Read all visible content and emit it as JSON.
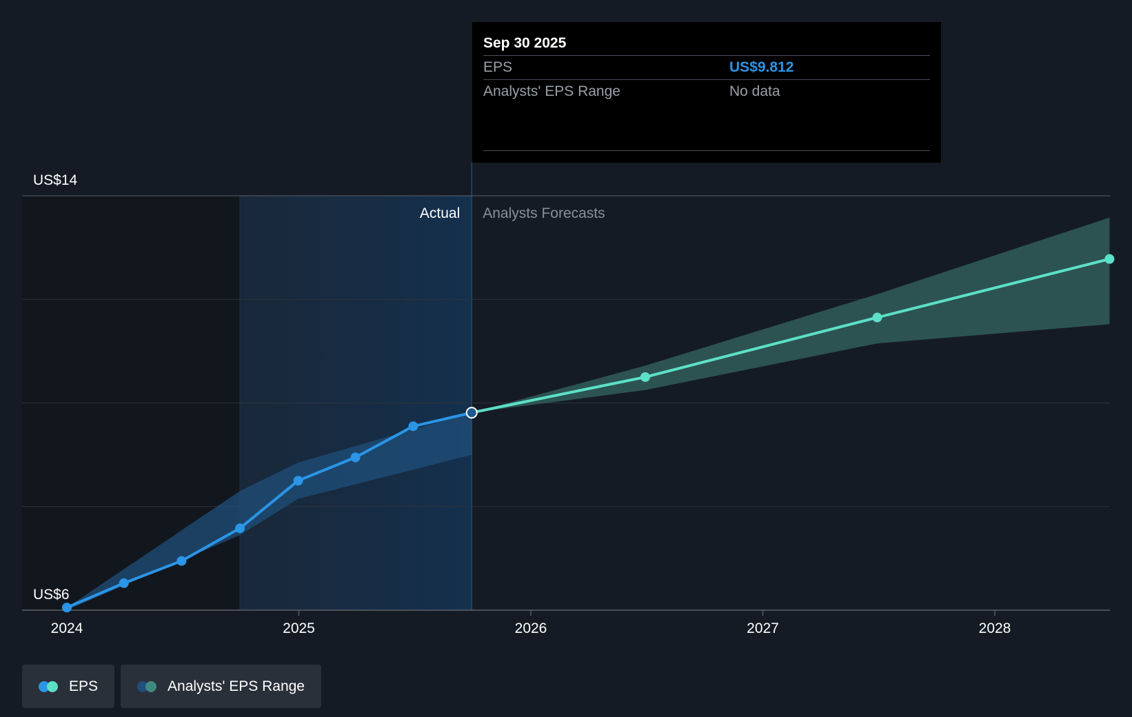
{
  "tooltip": {
    "date": "Sep 30 2025",
    "rows": [
      {
        "label": "EPS",
        "value": "US$9.812"
      },
      {
        "label": "Analysts' EPS Range",
        "value": "No data"
      }
    ]
  },
  "legend": {
    "eps": "EPS",
    "range": "Analysts' EPS Range"
  },
  "colors": {
    "background": "#151b24",
    "actual_line": "#2b95e6",
    "forecast_line": "#5de0c8",
    "forecast_band": "#2f5a58",
    "actual_band": "#1f4f7a"
  },
  "chart_data": {
    "type": "line",
    "y_tick_labels": [
      "US$14",
      "US$6"
    ],
    "ylim": [
      6,
      14
    ],
    "x_ticks": [
      2024,
      2025,
      2026,
      2027,
      2028
    ],
    "section_labels": {
      "actual": "Actual",
      "forecast": "Analysts Forecasts"
    },
    "series": [
      {
        "name": "EPS",
        "kind": "actual",
        "points": [
          {
            "x": "2024-01-01",
            "y": 6.05
          },
          {
            "x": "2024-03-31",
            "y": 6.52
          },
          {
            "x": "2024-06-30",
            "y": 6.95
          },
          {
            "x": "2024-09-30",
            "y": 7.58
          },
          {
            "x": "2024-12-31",
            "y": 8.5
          },
          {
            "x": "2025-03-31",
            "y": 8.95
          },
          {
            "x": "2025-06-30",
            "y": 9.55
          },
          {
            "x": "2025-09-30",
            "y": 9.812
          }
        ]
      },
      {
        "name": "EPS",
        "kind": "forecast",
        "points": [
          {
            "x": "2025-09-30",
            "y": 9.812
          },
          {
            "x": "2026-06-30",
            "y": 10.5
          },
          {
            "x": "2027-06-30",
            "y": 11.65
          },
          {
            "x": "2028-06-30",
            "y": 12.78
          }
        ]
      }
    ],
    "actual_range_band": {
      "upper": [
        {
          "x": "2024-01-01",
          "y": 6.05
        },
        {
          "x": "2024-09-30",
          "y": 8.3
        },
        {
          "x": "2024-12-31",
          "y": 8.85
        },
        {
          "x": "2025-09-30",
          "y": 9.812
        }
      ],
      "lower": [
        {
          "x": "2024-01-01",
          "y": 6.0
        },
        {
          "x": "2024-09-30",
          "y": 7.45
        },
        {
          "x": "2024-12-31",
          "y": 8.15
        },
        {
          "x": "2025-09-30",
          "y": 9.0
        }
      ]
    },
    "forecast_range_band": {
      "upper": [
        {
          "x": "2025-09-30",
          "y": 9.812
        },
        {
          "x": "2026-06-30",
          "y": 10.72
        },
        {
          "x": "2027-06-30",
          "y": 12.1
        },
        {
          "x": "2028-06-30",
          "y": 13.58
        }
      ],
      "lower": [
        {
          "x": "2025-09-30",
          "y": 9.812
        },
        {
          "x": "2026-06-30",
          "y": 10.25
        },
        {
          "x": "2027-06-30",
          "y": 11.15
        },
        {
          "x": "2028-06-30",
          "y": 11.52
        }
      ]
    }
  }
}
